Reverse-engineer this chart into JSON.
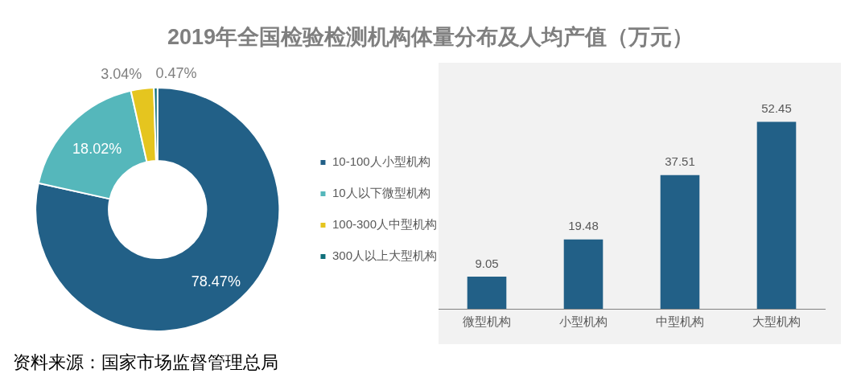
{
  "chart_data": [
    {
      "type": "donut",
      "title": "2019年全国检验检测机构体量分布及人均产值（万元）",
      "categories": [
        "10-100人小型机构",
        "10人以下微型机构",
        "100-300人中型机构",
        "300人以上大型机构"
      ],
      "values": [
        78.47,
        18.02,
        3.04,
        0.47
      ],
      "colors": [
        "#226087",
        "#55b7bb",
        "#e5c51f",
        "#10707b"
      ],
      "value_labels": [
        "78.47%",
        "18.02%",
        "3.04%",
        "0.47%"
      ],
      "legend": "right",
      "annotations": [
        "资料来源：国家市场监督管理总局"
      ]
    },
    {
      "type": "bar",
      "categories": [
        "微型机构",
        "小型机构",
        "中型机构",
        "大型机构"
      ],
      "values": [
        9.05,
        19.48,
        37.51,
        52.45
      ],
      "color": "#226087",
      "data_labels": true,
      "grid": false
    }
  ]
}
